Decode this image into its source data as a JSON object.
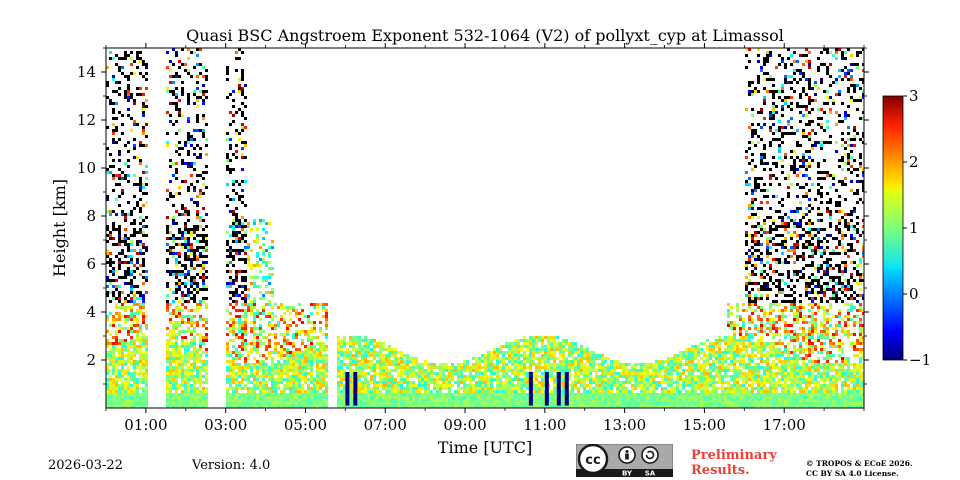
{
  "chart_data": {
    "type": "heatmap",
    "title": "Quasi BSC Angstroem Exponent 532-1064 (V2) of pollyxt_cyp at Limassol",
    "xlabel": "Time [UTC]",
    "ylabel": "Height [km]",
    "x_range_hours": [
      0.0,
      19.0
    ],
    "ylim": [
      0,
      15
    ],
    "x_ticks": [
      "01:00",
      "03:00",
      "05:00",
      "07:00",
      "09:00",
      "11:00",
      "13:00",
      "15:00",
      "17:00"
    ],
    "x_tick_hours": [
      1,
      3,
      5,
      7,
      9,
      11,
      13,
      15,
      17
    ],
    "y_ticks": [
      "2",
      "4",
      "6",
      "8",
      "10",
      "12",
      "14"
    ],
    "y_tick_values": [
      2,
      4,
      6,
      8,
      10,
      12,
      14
    ],
    "colorbar": {
      "min": -1,
      "max": 3,
      "ticks": [
        "−1",
        "0",
        "1",
        "2",
        "3"
      ],
      "tick_values": [
        -1,
        0,
        1,
        2,
        3
      ],
      "colormap": "jet"
    },
    "data_gaps_hours": [
      [
        1.0,
        1.5
      ],
      [
        2.5,
        3.0
      ],
      [
        5.55,
        5.75
      ]
    ],
    "aerosol_layer_top_km": 2.5,
    "grid": false
  },
  "footer": {
    "date": "2026-03-22",
    "version": "Version: 4.0",
    "preliminary_line1": "Preliminary",
    "preliminary_line2": "Results.",
    "copyright_line1": "© TROPOS & ECoE 2026.",
    "copyright_line2": "CC BY SA 4.0 License.",
    "license_badge": {
      "cc": "cc",
      "by": "BY",
      "sa": "SA"
    }
  },
  "colors": {
    "preliminary": "#e8423a",
    "badge_background": "#a8aaa8",
    "badge_dark": "#1a1a1a"
  }
}
